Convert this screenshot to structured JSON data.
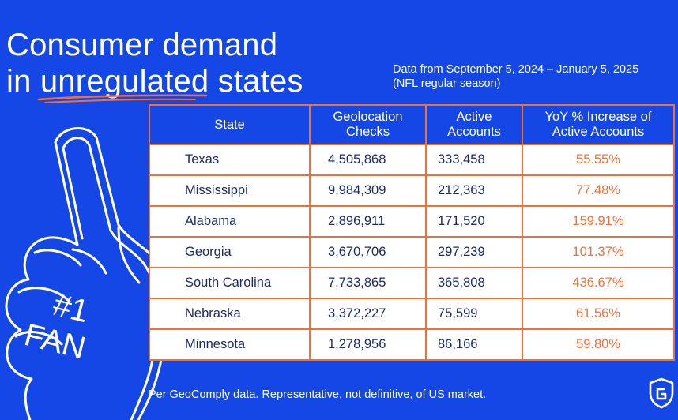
{
  "title": {
    "line1": "Consumer demand",
    "line2_prefix": "in ",
    "line2_highlight": "unregulated",
    "line2_suffix": " states"
  },
  "source": {
    "line1": "Data from September 5, 2024 – January 5, 2025",
    "line2": "(NFL regular season)"
  },
  "hand_text": {
    "line1": "#1",
    "line2": "FAN"
  },
  "colors": {
    "background": "#1447e6",
    "accent": "#f0703a",
    "table_text": "#1c2b63"
  },
  "chart_data": {
    "type": "table",
    "columns": [
      "State",
      "Geolocation Checks",
      "Active Accounts",
      "YoY % Increase of Active Accounts"
    ],
    "rows": [
      [
        "Texas",
        "4,505,868",
        "333,458",
        "55.55%"
      ],
      [
        "Mississippi",
        "9,984,309",
        "212,363",
        "77.48%"
      ],
      [
        "Alabama",
        "2,896,911",
        "171,520",
        "159.91%"
      ],
      [
        "Georgia",
        "3,670,706",
        "297,239",
        "101.37%"
      ],
      [
        "South Carolina",
        "7,733,865",
        "365,808",
        "436.67%"
      ],
      [
        "Nebraska",
        "3,372,227",
        "75,599",
        "61.56%"
      ],
      [
        "Minnesota",
        "1,278,956",
        "86,166",
        "59.80%"
      ]
    ]
  },
  "footer": "Per GeoComply data. Representative, not definitive, of US market.",
  "logo_icon": "geocomply-shield-icon"
}
